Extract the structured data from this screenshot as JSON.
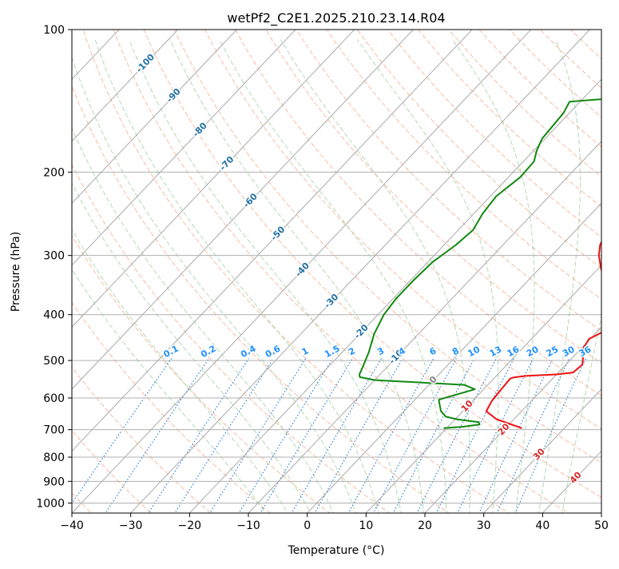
{
  "chart_data": {
    "type": "line",
    "chart_kind": "skew-T log-P diagram",
    "title": "wetPf2_C2E1.2025.210.23.14.R04",
    "xlabel": "Temperature (°C)",
    "ylabel": "Pressure (hPa)",
    "xlim": [
      -40,
      50
    ],
    "ylim": [
      1050,
      100
    ],
    "y_scale": "log",
    "x_ticks": [
      -40,
      -30,
      -20,
      -10,
      0,
      10,
      20,
      30,
      40,
      50
    ],
    "y_ticks": [
      100,
      200,
      300,
      400,
      500,
      600,
      700,
      800,
      900,
      1000
    ],
    "grid": true,
    "colors": {
      "temperature": "#ee1111",
      "dewpoint": "#118811",
      "isotherm": "#a9a9a9",
      "dry_adiabat": "#f4a582",
      "moist_adiabat": "#a6d2a6",
      "mixing_ratio": "#1f77d4",
      "isotherm_label": "#2471a3",
      "isotherm_label_warm": "#d62728",
      "mixing_label": "#1e90ff"
    },
    "series": [
      {
        "name": "temperature",
        "role": "temperature",
        "color": "#ee1111",
        "points": [
          [
            22.8,
            695
          ],
          [
            17,
            665
          ],
          [
            14,
            640
          ],
          [
            13.3,
            610
          ],
          [
            13,
            575
          ],
          [
            12.8,
            546
          ],
          [
            13.2,
            543
          ],
          [
            15,
            539
          ],
          [
            20,
            535
          ],
          [
            22.5,
            530
          ],
          [
            22.8,
            510
          ],
          [
            21.6,
            490
          ],
          [
            20.3,
            470
          ],
          [
            19.8,
            450
          ],
          [
            21,
            435
          ],
          [
            21.3,
            420
          ],
          [
            20.7,
            405
          ],
          [
            19.2,
            385
          ],
          [
            17,
            368
          ],
          [
            14,
            345
          ],
          [
            10.5,
            320
          ],
          [
            8,
            300
          ],
          [
            6.5,
            285
          ],
          [
            5.3,
            265
          ],
          [
            4.3,
            245
          ],
          [
            3.8,
            225
          ],
          [
            3.6,
            200
          ],
          [
            3.5,
            180
          ],
          [
            3.7,
            163
          ],
          [
            4.3,
            150
          ],
          [
            4.5,
            140
          ],
          [
            3.8,
            130
          ],
          [
            3.5,
            120
          ],
          [
            5.2,
            110
          ],
          [
            8,
            100
          ]
        ]
      },
      {
        "name": "dewpoint",
        "role": "dewpoint",
        "color": "#118811",
        "points": [
          [
            9.5,
            695
          ],
          [
            12.5,
            690
          ],
          [
            15,
            683
          ],
          [
            14.5,
            675
          ],
          [
            10.5,
            666
          ],
          [
            8,
            657
          ],
          [
            6.3,
            640
          ],
          [
            4.5,
            612
          ],
          [
            4.1,
            605
          ],
          [
            5.5,
            595
          ],
          [
            8.5,
            575
          ],
          [
            6,
            563
          ],
          [
            -10,
            550
          ],
          [
            -13,
            542
          ],
          [
            -13.5,
            535
          ],
          [
            -14,
            520
          ],
          [
            -15.5,
            480
          ],
          [
            -17.5,
            440
          ],
          [
            -19,
            400
          ],
          [
            -19.5,
            370
          ],
          [
            -19.5,
            340
          ],
          [
            -19.2,
            310
          ],
          [
            -18,
            285
          ],
          [
            -17.5,
            265
          ],
          [
            -18.5,
            245
          ],
          [
            -19,
            225
          ],
          [
            -18,
            205
          ],
          [
            -18.2,
            190
          ],
          [
            -19.5,
            180
          ],
          [
            -20.5,
            170
          ],
          [
            -21,
            150
          ],
          [
            -21.8,
            142
          ],
          [
            -10,
            138
          ],
          [
            -4,
            132
          ],
          [
            1,
            124
          ],
          [
            3.5,
            116
          ],
          [
            4.5,
            108
          ],
          [
            5,
            100
          ]
        ]
      }
    ],
    "isotherm_labels": [
      {
        "text": "-100",
        "t": -100,
        "p": 118
      },
      {
        "text": "-90",
        "t": -90,
        "p": 138
      },
      {
        "text": "-80",
        "t": -80,
        "p": 163
      },
      {
        "text": "-70",
        "t": -70,
        "p": 192
      },
      {
        "text": "-60",
        "t": -60,
        "p": 230
      },
      {
        "text": "-50",
        "t": -50,
        "p": 270
      },
      {
        "text": "-40",
        "t": -40,
        "p": 322
      },
      {
        "text": "-30",
        "t": -30,
        "p": 375
      },
      {
        "text": "-20",
        "t": -20,
        "p": 435
      },
      {
        "text": "-10",
        "t": -10,
        "p": 492
      },
      {
        "text": "0",
        "t": 0,
        "p": 550
      },
      {
        "text": "10",
        "t": 10,
        "p": 625
      },
      {
        "text": "20",
        "t": 20,
        "p": 700
      },
      {
        "text": "30",
        "t": 30,
        "p": 790
      },
      {
        "text": "40",
        "t": 40,
        "p": 885
      }
    ],
    "mixing_ratio_labels": [
      "0.1",
      "0.2",
      "0.4",
      "0.6",
      "1",
      "1.5",
      "2",
      "3",
      "4",
      "6",
      "8",
      "10",
      "13",
      "16",
      "20",
      "25",
      "30",
      "36"
    ],
    "mixing_ratio_label_pressure": 492
  }
}
